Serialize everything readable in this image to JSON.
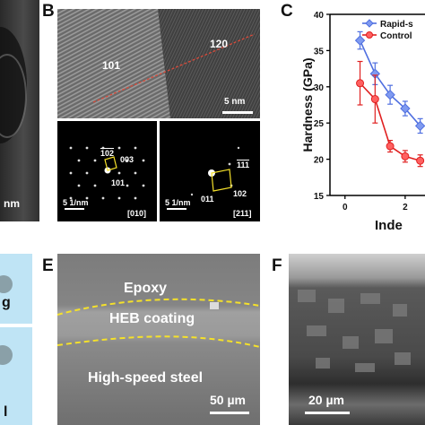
{
  "panels": {
    "A": {
      "scale_label": "nm"
    },
    "B": {
      "letter": "B",
      "hrtem": {
        "label_left": "101",
        "label_right": "120",
        "scale": "5 nm"
      },
      "saed_left": {
        "spots": [
          "102",
          "003",
          "101"
        ],
        "spots_overline": "−",
        "scale": "5 1/nm",
        "zone": "[010]"
      },
      "saed_right": {
        "spots": [
          "111",
          "011",
          "102"
        ],
        "scale": "5 1/nm",
        "zone": "[211]"
      }
    },
    "C": {
      "letter": "C"
    },
    "D": {
      "text_top": "g",
      "text_bottom": "l"
    },
    "E": {
      "letter": "E",
      "epoxy": "Epoxy",
      "coating": "HEB coating",
      "substrate": "High-speed steel",
      "scale": "50 µm"
    },
    "F": {
      "letter": "F",
      "scale": "20 µm"
    }
  },
  "chart_data": {
    "type": "line",
    "ylabel": "Hardness (GPa)",
    "xlabel": "Inde",
    "ylim": [
      15,
      40
    ],
    "yticks": [
      "15",
      "20",
      "25",
      "30",
      "35",
      "40"
    ],
    "xlim": [
      -0.5,
      2.6
    ],
    "xticks": [
      "0",
      "2"
    ],
    "legend_position": "top-right",
    "series": [
      {
        "name": "Rapid-s",
        "color": "#4f6fe0",
        "marker": "diamond",
        "x": [
          0.5,
          1.0,
          1.5,
          2.0,
          2.5
        ],
        "y": [
          36.4,
          31.8,
          28.9,
          27.0,
          24.6
        ],
        "err": [
          1.2,
          1.5,
          1.3,
          1.0,
          1.0
        ]
      },
      {
        "name": "Control",
        "color": "#e02020",
        "marker": "circle",
        "x": [
          0.5,
          1.0,
          1.5,
          2.0,
          2.5
        ],
        "y": [
          30.5,
          28.3,
          21.8,
          20.4,
          19.8
        ],
        "err": [
          3.0,
          3.3,
          0.8,
          0.8,
          0.8
        ]
      }
    ]
  },
  "colors": {
    "boundary_dash": "#f5e12a",
    "saed_box": "#f5e12a",
    "interface_line": "#d84a3a"
  }
}
